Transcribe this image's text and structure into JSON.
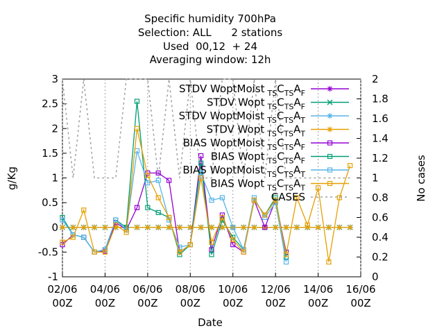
{
  "chart_data": {
    "type": "line",
    "title_lines": [
      "Specific humidity 700hPa",
      "Selection: ALL      2 stations",
      "Used  00,12  + 24",
      "Averaging window: 12h"
    ],
    "xlabel": "Date",
    "ylabel": "g/Kg",
    "y2label": "No cases",
    "x_ticks": [
      {
        "x": 0,
        "l1": "02/06",
        "l2": "00Z"
      },
      {
        "x": 2,
        "l1": "04/06",
        "l2": "00Z"
      },
      {
        "x": 4,
        "l1": "06/06",
        "l2": "00Z"
      },
      {
        "x": 6,
        "l1": "08/06",
        "l2": "00Z"
      },
      {
        "x": 8,
        "l1": "10/06",
        "l2": "00Z"
      },
      {
        "x": 10,
        "l1": "12/06",
        "l2": "00Z"
      },
      {
        "x": 12,
        "l1": "14/06",
        "l2": "00Z"
      },
      {
        "x": 14,
        "l1": "16/06",
        "l2": "00Z"
      }
    ],
    "xlim": [
      0,
      14
    ],
    "ylim": [
      -1,
      3
    ],
    "y_ticks": [
      "-1",
      "-0.5",
      "0",
      "0.5",
      "1",
      "1.5",
      "2",
      "2.5",
      "3"
    ],
    "y2lim": [
      0,
      2
    ],
    "y2_ticks": [
      "0",
      "0.2",
      "0.4",
      "0.6",
      "0.8",
      "1",
      "1.2",
      "1.4",
      "1.6",
      "1.8",
      "2"
    ],
    "legend_position": "top-right",
    "x": [
      0,
      0.5,
      1,
      1.5,
      2,
      2.5,
      3,
      3.5,
      4,
      4.5,
      5,
      5.5,
      6,
      6.5,
      7,
      7.5,
      8,
      8.5,
      9,
      9.5,
      10,
      10.5,
      11,
      11.5,
      12,
      12.5,
      13,
      13.5
    ],
    "series": [
      {
        "name": "STDV WoptMoist",
        "sub": "TSCTSAF",
        "color": "#9400d3",
        "marker": "star",
        "dash": "",
        "values": [
          0,
          0,
          0,
          0,
          0,
          0,
          0,
          0,
          0,
          0,
          0,
          0,
          0,
          0,
          0,
          0,
          0,
          0,
          0,
          0,
          0,
          0,
          0,
          0,
          0,
          0,
          0,
          0
        ]
      },
      {
        "name": "STDV Wopt",
        "sub": "TSCTSAF",
        "color": "#009e73",
        "marker": "x",
        "dash": "",
        "values": [
          0,
          0,
          0,
          0,
          0,
          0,
          0,
          0,
          0,
          0,
          0,
          0,
          0,
          0,
          0,
          0,
          0,
          0,
          0,
          0,
          0,
          0,
          0,
          0,
          0,
          0,
          0,
          0
        ]
      },
      {
        "name": "STDV WoptMoist",
        "sub": "TSCTSAT",
        "color": "#56b4e9",
        "marker": "star",
        "dash": "",
        "values": [
          0,
          0,
          0,
          0,
          0,
          0,
          0,
          0,
          0,
          0,
          0,
          0,
          0,
          0,
          0,
          0,
          0,
          0,
          0,
          0,
          0,
          0,
          0,
          0,
          0,
          0,
          0,
          0
        ]
      },
      {
        "name": "STDV Wopt",
        "sub": "TSCTSAT",
        "color": "#e69f00",
        "marker": "star",
        "dash": "",
        "values": [
          0,
          0,
          0,
          0,
          0,
          0,
          0,
          0,
          0,
          0,
          0,
          0,
          0,
          0,
          0,
          0,
          0,
          0,
          0,
          0,
          0,
          0,
          0,
          0,
          0,
          0,
          0,
          0
        ]
      },
      {
        "name": "BIAS WoptMoist",
        "sub": "TSCTSAF",
        "color": "#9400d3",
        "marker": "square",
        "dash": "",
        "values": [
          -0.35,
          -0.15,
          -0.2,
          -0.5,
          -0.48,
          0.1,
          -0.05,
          0.4,
          1.1,
          1.1,
          0.95,
          -0.5,
          -0.35,
          1.45,
          -0.45,
          0.25,
          -0.35,
          -0.5,
          0.55,
          0,
          0.55,
          -0.5,
          null,
          null,
          null,
          null,
          null,
          null
        ]
      },
      {
        "name": "BIAS Wopt",
        "sub": "TSCTSAF",
        "color": "#009e73",
        "marker": "square",
        "dash": "",
        "values": [
          0.2,
          -0.15,
          -0.2,
          -0.5,
          -0.45,
          0.15,
          0,
          2.55,
          0.4,
          0.3,
          0.2,
          -0.55,
          -0.35,
          1.3,
          -0.55,
          0.15,
          -0.2,
          -0.45,
          0.55,
          0.25,
          0.6,
          -0.6,
          null,
          null,
          null,
          null,
          null,
          null
        ]
      },
      {
        "name": "BIAS WoptMoist",
        "sub": "TSCTSAT",
        "color": "#56b4e9",
        "marker": "square",
        "dash": "",
        "values": [
          0.15,
          -0.15,
          -0.2,
          -0.5,
          -0.45,
          0.15,
          -0.05,
          1.55,
          0.9,
          0.95,
          0.15,
          -0.4,
          -0.35,
          1.1,
          0.55,
          0.6,
          0,
          -0.45,
          0.6,
          0.2,
          0.5,
          -0.7,
          null,
          null,
          null,
          null,
          null,
          null
        ]
      },
      {
        "name": "BIAS Wopt",
        "sub": "TSCTSAT",
        "color": "#e69f00",
        "marker": "square",
        "dash": "",
        "values": [
          -0.3,
          -0.2,
          0.35,
          -0.5,
          -0.5,
          0.05,
          -0.1,
          2.0,
          1.05,
          0.6,
          0.2,
          -0.5,
          -0.35,
          1.0,
          -0.3,
          0.2,
          -0.25,
          -0.5,
          0.55,
          0.25,
          0.55,
          -0.55,
          0.6,
          0.05,
          0.8,
          -0.7,
          0.6,
          1.25
        ]
      },
      {
        "name": "CASES",
        "sub": "",
        "color": "#a0a0a0",
        "marker": "none",
        "dash": "3,4",
        "axis": "y2",
        "values": [
          2,
          1,
          2,
          1,
          1,
          1,
          2,
          2,
          2,
          1,
          2,
          1,
          2,
          1,
          1,
          2,
          2,
          1,
          2,
          1,
          2,
          1,
          1,
          1,
          1,
          1,
          1,
          1
        ]
      }
    ]
  }
}
